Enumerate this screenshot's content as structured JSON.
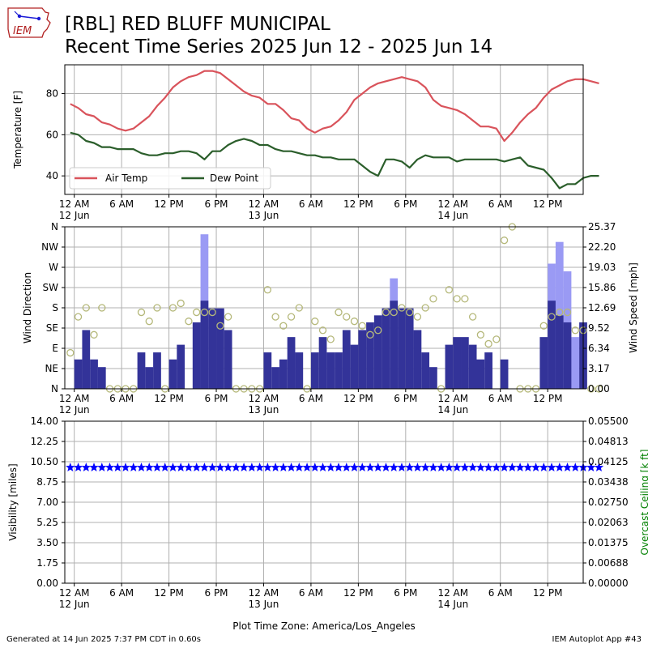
{
  "header": {
    "logo_text": "IEM",
    "title_line1": "[RBL] RED BLUFF MUNICIPAL",
    "title_line2": "Recent Time Series 2025 Jun 12 - 2025 Jun 14"
  },
  "footer": {
    "generated": "Generated at 14 Jun 2025 7:37 PM CDT in 0.60s",
    "app": "IEM Autoplot App #43"
  },
  "colors": {
    "air_temp": "#d9535b",
    "dew_point": "#2b5e2b",
    "wind_speed": "#333399",
    "wind_gust": "#9a9af4",
    "wind_dir_marker": "#b5b87a",
    "visibility": "#0000ff",
    "ceiling_label": "#008000"
  },
  "chart_data": [
    {
      "type": "line",
      "ylabel": "Temperature [F]",
      "ylim": [
        31,
        94
      ],
      "yticks": [
        40,
        60,
        80
      ],
      "grid": true,
      "legend_position": "lower-left",
      "x": [
        -0.5,
        0.5,
        1.5,
        2.5,
        3.5,
        4.5,
        5.5,
        6.5,
        7.5,
        8.5,
        9.5,
        10.5,
        11.5,
        12.5,
        13.5,
        14.5,
        15.5,
        16.5,
        17.5,
        18.5,
        19.5,
        20.5,
        21.5,
        22.5,
        23.5,
        24.5,
        25.5,
        26.5,
        27.5,
        28.5,
        29.5,
        30.5,
        31.5,
        32.5,
        33.5,
        34.5,
        35.5,
        36.5,
        37.5,
        38.5,
        39.5,
        40.5,
        41.5,
        42.5,
        43.5,
        44.5,
        45.5,
        46.5,
        47.5,
        48.5,
        49.5,
        50.5,
        51.5,
        52.5,
        53.5,
        54.5,
        55.5,
        56.5,
        57.5,
        58.5,
        59.5,
        60.5,
        61.5,
        62.5,
        63.5,
        64.5,
        65.5,
        66.5
      ],
      "series": [
        {
          "name": "Air Temp",
          "values": [
            75,
            73,
            70,
            69,
            66,
            65,
            63,
            62,
            63,
            66,
            69,
            74,
            78,
            83,
            86,
            88,
            89,
            91,
            91,
            90,
            87,
            84,
            81,
            79,
            78,
            75,
            75,
            72,
            68,
            67,
            63,
            61,
            63,
            64,
            67,
            71,
            77,
            80,
            83,
            85,
            86,
            87,
            88,
            87,
            86,
            83,
            77,
            74,
            73,
            72,
            70,
            67,
            64,
            64,
            63,
            57,
            61,
            66,
            70,
            73,
            78,
            82,
            84,
            86,
            87,
            87,
            86,
            85
          ]
        },
        {
          "name": "Dew Point",
          "values": [
            61,
            60,
            57,
            56,
            54,
            54,
            53,
            53,
            53,
            51,
            50,
            50,
            51,
            51,
            52,
            52,
            51,
            48,
            52,
            52,
            55,
            57,
            58,
            57,
            55,
            55,
            53,
            52,
            52,
            51,
            50,
            50,
            49,
            49,
            48,
            48,
            48,
            45,
            42,
            40,
            48,
            48,
            47,
            44,
            48,
            50,
            49,
            49,
            49,
            47,
            48,
            48,
            48,
            48,
            48,
            47,
            48,
            49,
            45,
            44,
            43,
            39,
            34,
            36,
            36,
            39,
            40,
            40
          ]
        }
      ]
    },
    {
      "type": "bar",
      "ylabel": "Wind Direction",
      "y2label": "Wind Speed [mph]",
      "ylim": [
        0,
        360
      ],
      "ytick_labels": [
        "N",
        "NE",
        "E",
        "SE",
        "S",
        "SW",
        "W",
        "NW",
        "N"
      ],
      "y2lim": [
        0,
        25.37
      ],
      "y2ticks": [
        "0.00",
        "3.17",
        "6.34",
        "9.52",
        "12.69",
        "15.86",
        "19.03",
        "22.20",
        "25.37"
      ],
      "grid": true,
      "x": [
        -0.5,
        0.5,
        1.5,
        2.5,
        3.5,
        4.5,
        5.5,
        6.5,
        7.5,
        8.5,
        9.5,
        10.5,
        11.5,
        12.5,
        13.5,
        14.5,
        15.5,
        16.5,
        17.5,
        18.5,
        19.5,
        20.5,
        21.5,
        22.5,
        23.5,
        24.5,
        25.5,
        26.5,
        27.5,
        28.5,
        29.5,
        30.5,
        31.5,
        32.5,
        33.5,
        34.5,
        35.5,
        36.5,
        37.5,
        38.5,
        39.5,
        40.5,
        41.5,
        42.5,
        43.5,
        44.5,
        45.5,
        46.5,
        47.5,
        48.5,
        49.5,
        50.5,
        51.5,
        52.5,
        53.5,
        54.5,
        55.5,
        56.5,
        57.5,
        58.5,
        59.5,
        60.5,
        61.5,
        62.5,
        63.5,
        64.5,
        65.5,
        66.5
      ],
      "series": [
        {
          "name": "Wind Speed",
          "values": [
            0,
            4.6,
            9.2,
            4.6,
            3.4,
            0,
            0,
            0,
            0,
            5.7,
            3.4,
            5.7,
            0,
            4.6,
            6.9,
            0,
            10.4,
            13.8,
            12.6,
            12.6,
            9.2,
            0,
            0,
            0,
            0,
            5.7,
            3.4,
            4.6,
            8.1,
            5.7,
            0,
            5.7,
            8.1,
            5.7,
            5.7,
            9.2,
            6.9,
            9.2,
            10.4,
            11.5,
            12.6,
            13.8,
            12.6,
            12.6,
            9.2,
            5.7,
            3.4,
            0,
            6.9,
            8.1,
            8.1,
            6.9,
            4.6,
            5.7,
            0,
            4.6,
            0,
            0,
            0,
            0,
            8.1,
            13.8,
            11.5,
            10.4,
            0,
            10.4,
            0,
            0
          ]
        },
        {
          "name": "Wind Gust",
          "values": [
            0,
            0,
            0,
            0,
            0,
            0,
            0,
            0,
            0,
            0,
            0,
            0,
            0,
            0,
            0,
            0,
            0,
            24.2,
            0,
            0,
            0,
            0,
            0,
            0,
            0,
            0,
            0,
            0,
            0,
            0,
            0,
            0,
            0,
            0,
            0,
            0,
            0,
            0,
            0,
            0,
            0,
            17.3,
            0,
            0,
            0,
            0,
            0,
            0,
            0,
            0,
            0,
            0,
            0,
            0,
            0,
            0,
            0,
            0,
            0,
            0,
            0,
            19.6,
            23.0,
            18.4,
            8.1,
            0,
            0,
            0
          ]
        },
        {
          "name": "Wind Direction",
          "values": [
            80,
            160,
            180,
            120,
            180,
            0,
            0,
            0,
            0,
            170,
            150,
            180,
            0,
            180,
            190,
            150,
            170,
            170,
            170,
            140,
            160,
            0,
            0,
            0,
            0,
            220,
            160,
            140,
            160,
            180,
            0,
            150,
            130,
            110,
            170,
            160,
            150,
            140,
            120,
            130,
            170,
            170,
            180,
            170,
            160,
            180,
            200,
            0,
            220,
            200,
            200,
            160,
            120,
            100,
            110,
            330,
            360,
            0,
            0,
            0,
            140,
            160,
            170,
            170,
            130,
            130,
            0,
            0
          ]
        }
      ]
    },
    {
      "type": "scatter",
      "ylabel": "Visibility [miles]",
      "y2label": "Overcast Ceiling [k ft]",
      "ylim": [
        0,
        14
      ],
      "yticks": [
        "0.00",
        "1.75",
        "3.50",
        "5.25",
        "7.00",
        "8.75",
        "10.50",
        "12.25",
        "14.00"
      ],
      "y2lim": [
        0,
        0.055
      ],
      "y2ticks": [
        "0.00000",
        "0.00688",
        "0.01375",
        "0.02063",
        "0.02750",
        "0.03438",
        "0.04125",
        "0.04813",
        "0.05500"
      ],
      "grid": true,
      "series": [
        {
          "name": "Visibility",
          "marker": "star",
          "constant_value": 10,
          "count": 68
        }
      ]
    }
  ],
  "x_axis": {
    "tick_labels": [
      [
        "12 AM",
        "12 Jun"
      ],
      [
        "6 AM",
        ""
      ],
      [
        "12 PM",
        ""
      ],
      [
        "6 PM",
        ""
      ],
      [
        "12 AM",
        "13 Jun"
      ],
      [
        "6 AM",
        ""
      ],
      [
        "12 PM",
        ""
      ],
      [
        "6 PM",
        ""
      ],
      [
        "12 AM",
        "14 Jun"
      ],
      [
        "6 AM",
        ""
      ],
      [
        "12 PM",
        ""
      ]
    ],
    "tick_hours": [
      0,
      6,
      12,
      18,
      24,
      30,
      36,
      42,
      48,
      54,
      60
    ],
    "range_hours": [
      -1.2,
      64.5
    ],
    "xlabel": "Plot Time Zone: America/Los_Angeles"
  }
}
